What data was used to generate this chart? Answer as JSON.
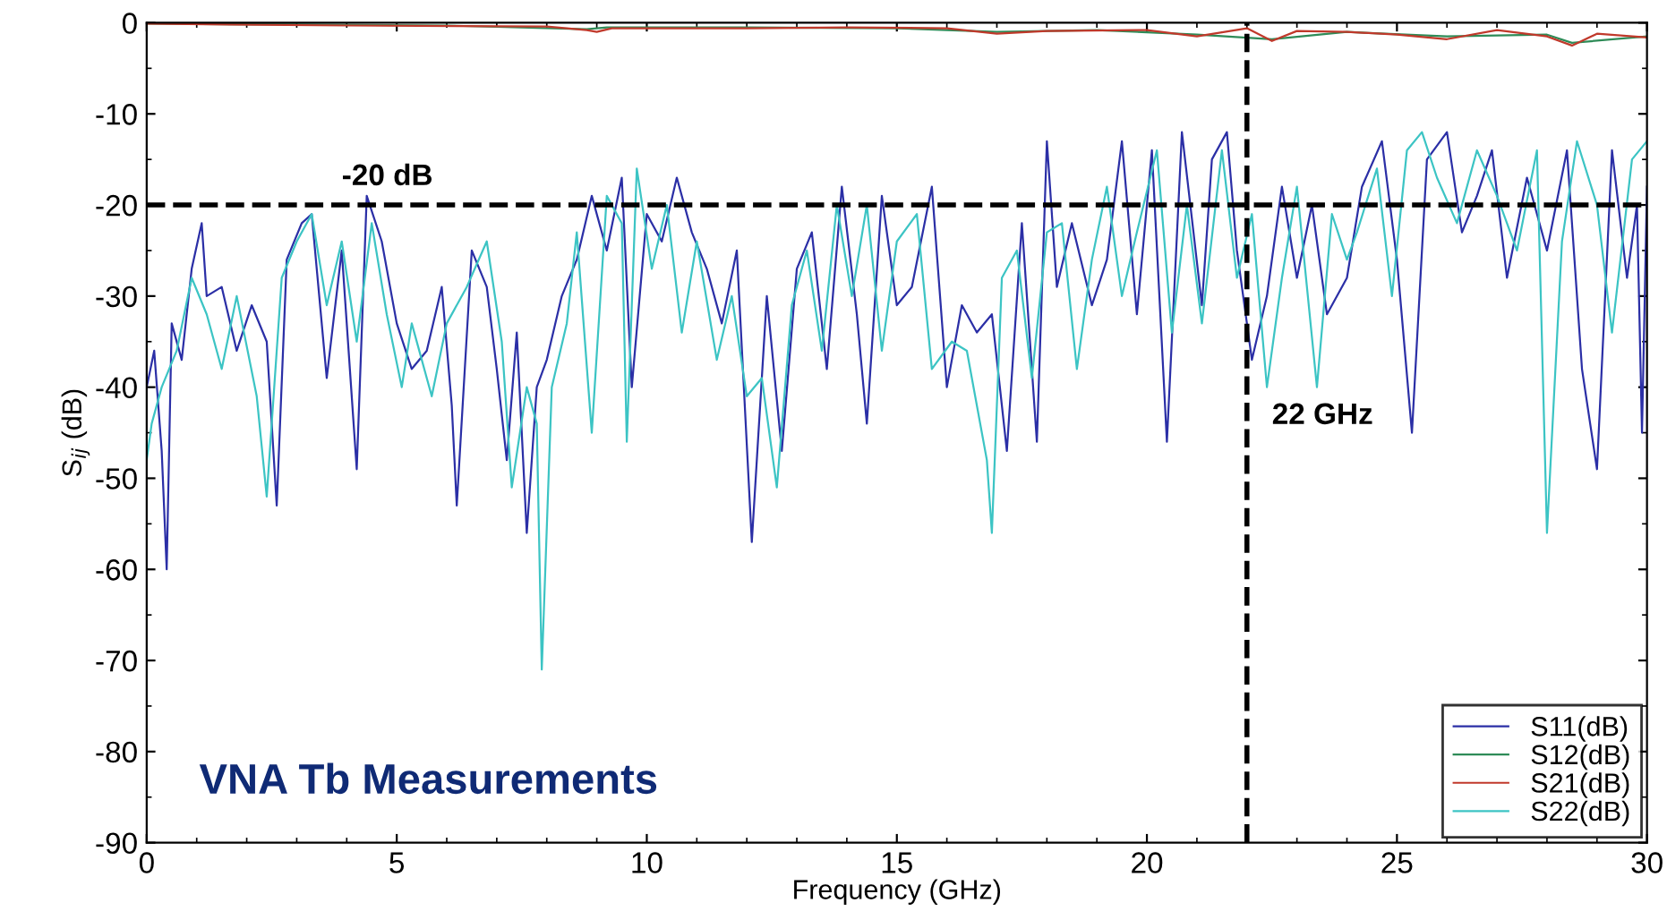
{
  "chart_data": {
    "type": "line",
    "xlabel": "Frequency (GHz)",
    "ylabel": "S$_{ij}$ (dB)",
    "xlim": [
      0,
      30
    ],
    "ylim": [
      -90,
      0
    ],
    "xticks": [
      0,
      5,
      10,
      15,
      20,
      25,
      30
    ],
    "yticks": [
      -90,
      -80,
      -70,
      -60,
      -50,
      -40,
      -30,
      -20,
      -10,
      0
    ],
    "grid": false,
    "legend": "bottom right",
    "marker": "none",
    "line_style": "solid",
    "annotations": [
      "VNA Tb Measurements"
    ],
    "ref_lines": [
      {
        "axis": "y",
        "value": -20,
        "label": "-20 dB",
        "color": "#000000",
        "line_style": "dashed"
      },
      {
        "axis": "x",
        "value": 22,
        "label": "22 GHz",
        "color": "#000000",
        "line_style": "dashed"
      }
    ],
    "series": [
      {
        "name": "S11(dB)",
        "color": "#2b2fa6",
        "x": [
          0,
          0.15,
          0.3,
          0.4,
          0.5,
          0.7,
          0.9,
          1.1,
          1.2,
          1.5,
          1.8,
          2.1,
          2.4,
          2.6,
          2.8,
          3.1,
          3.3,
          3.6,
          3.9,
          4.2,
          4.4,
          4.7,
          5.0,
          5.3,
          5.6,
          5.9,
          6.1,
          6.2,
          6.5,
          6.8,
          7.0,
          7.2,
          7.4,
          7.6,
          7.8,
          8.0,
          8.3,
          8.6,
          8.9,
          9.2,
          9.5,
          9.7,
          10.0,
          10.3,
          10.6,
          10.9,
          11.2,
          11.5,
          11.8,
          12.1,
          12.4,
          12.7,
          13.0,
          13.3,
          13.6,
          13.9,
          14.2,
          14.4,
          14.7,
          15.0,
          15.3,
          15.7,
          16.0,
          16.3,
          16.6,
          16.9,
          17.2,
          17.5,
          17.8,
          18.0,
          18.2,
          18.5,
          18.9,
          19.2,
          19.5,
          19.8,
          20.1,
          20.4,
          20.7,
          21.1,
          21.3,
          21.6,
          21.8,
          22.1,
          22.4,
          22.7,
          23.0,
          23.3,
          23.6,
          24.0,
          24.3,
          24.7,
          25.0,
          25.3,
          25.6,
          26.0,
          26.3,
          26.6,
          26.9,
          27.2,
          27.6,
          28.0,
          28.4,
          28.7,
          29.0,
          29.3,
          29.6,
          29.8,
          29.9,
          30
        ],
        "values": [
          -40,
          -36,
          -47,
          -60,
          -33,
          -37,
          -27,
          -22,
          -30,
          -29,
          -36,
          -31,
          -35,
          -53,
          -26,
          -22,
          -21,
          -39,
          -25,
          -49,
          -19,
          -24,
          -33,
          -38,
          -36,
          -29,
          -42,
          -53,
          -25,
          -29,
          -38,
          -48,
          -34,
          -56,
          -40,
          -37,
          -30,
          -26,
          -19,
          -25,
          -17,
          -40,
          -21,
          -24,
          -17,
          -23,
          -27,
          -33,
          -25,
          -57,
          -30,
          -47,
          -27,
          -23,
          -38,
          -18,
          -32,
          -44,
          -19,
          -31,
          -29,
          -18,
          -40,
          -31,
          -34,
          -32,
          -47,
          -22,
          -46,
          -13,
          -29,
          -22,
          -31,
          -26,
          -13,
          -32,
          -14,
          -46,
          -12,
          -31,
          -15,
          -12,
          -25,
          -37,
          -30,
          -18,
          -28,
          -20,
          -32,
          -28,
          -18,
          -13,
          -26,
          -45,
          -15,
          -12,
          -23,
          -19,
          -14,
          -28,
          -17,
          -25,
          -14,
          -38,
          -49,
          -14,
          -28,
          -20,
          -45,
          -18
        ]
      },
      {
        "name": "S12(dB)",
        "color": "#2e8b57",
        "x": [
          0,
          3,
          6,
          8.8,
          9.2,
          12,
          15,
          17,
          19,
          21,
          22.5,
          24,
          26,
          28,
          28.5,
          30
        ],
        "values": [
          -0.1,
          -0.2,
          -0.3,
          -0.7,
          -0.5,
          -0.5,
          -0.6,
          -1.0,
          -0.8,
          -1.3,
          -1.8,
          -1.0,
          -1.5,
          -1.3,
          -2.2,
          -1.5
        ]
      },
      {
        "name": "S21(dB)",
        "color": "#c0392b",
        "x": [
          0,
          4,
          8,
          8.8,
          9,
          9.3,
          12,
          14,
          16,
          17,
          18,
          20,
          21,
          22,
          22.5,
          23,
          24,
          25,
          26,
          27,
          28,
          28.5,
          29,
          30
        ],
        "values": [
          -0.1,
          -0.3,
          -0.4,
          -0.8,
          -1,
          -0.6,
          -0.6,
          -0.5,
          -0.6,
          -1.2,
          -0.9,
          -0.8,
          -1.5,
          -0.6,
          -2,
          -0.9,
          -1,
          -1.3,
          -1.8,
          -0.8,
          -1.5,
          -2.5,
          -1.2,
          -1.6
        ]
      },
      {
        "name": "S22(dB)",
        "color": "#3cc4c4",
        "x": [
          0,
          0.1,
          0.3,
          0.6,
          0.9,
          1.2,
          1.5,
          1.8,
          2.2,
          2.4,
          2.7,
          3.0,
          3.3,
          3.6,
          3.9,
          4.2,
          4.5,
          4.8,
          5.1,
          5.3,
          5.7,
          6.0,
          6.4,
          6.8,
          7.1,
          7.3,
          7.6,
          7.8,
          7.9,
          8.1,
          8.4,
          8.6,
          8.9,
          9.2,
          9.5,
          9.6,
          9.8,
          10.1,
          10.4,
          10.7,
          11.0,
          11.4,
          11.7,
          12.0,
          12.3,
          12.6,
          12.9,
          13.2,
          13.5,
          13.8,
          14.1,
          14.4,
          14.7,
          15.0,
          15.4,
          15.7,
          16.1,
          16.4,
          16.8,
          16.9,
          17.1,
          17.4,
          17.7,
          18.0,
          18.3,
          18.6,
          18.9,
          19.2,
          19.5,
          19.8,
          20.2,
          20.5,
          20.8,
          21.1,
          21.5,
          21.8,
          22.1,
          22.4,
          22.7,
          23.0,
          23.4,
          23.7,
          24.0,
          24.2,
          24.6,
          24.9,
          25.2,
          25.5,
          25.8,
          26.2,
          26.6,
          27.0,
          27.4,
          27.8,
          28.0,
          28.3,
          28.6,
          29.0,
          29.3,
          29.7,
          30
        ],
        "values": [
          -48,
          -44,
          -40,
          -36,
          -28,
          -32,
          -38,
          -30,
          -41,
          -52,
          -28,
          -24,
          -21,
          -31,
          -24,
          -35,
          -22,
          -32,
          -40,
          -33,
          -41,
          -33,
          -29,
          -24,
          -35,
          -51,
          -40,
          -44,
          -71,
          -40,
          -33,
          -23,
          -45,
          -19,
          -22,
          -46,
          -16,
          -27,
          -20,
          -34,
          -24,
          -37,
          -30,
          -41,
          -39,
          -51,
          -31,
          -25,
          -36,
          -20,
          -30,
          -20,
          -36,
          -24,
          -21,
          -38,
          -35,
          -36,
          -48,
          -56,
          -28,
          -25,
          -39,
          -23,
          -22,
          -38,
          -26,
          -18,
          -30,
          -23,
          -14,
          -34,
          -20,
          -33,
          -14,
          -28,
          -21,
          -40,
          -28,
          -18,
          -40,
          -21,
          -26,
          -23,
          -16,
          -30,
          -14,
          -12,
          -17,
          -22,
          -14,
          -19,
          -25,
          -14,
          -56,
          -24,
          -13,
          -20,
          -34,
          -15,
          -13
        ]
      }
    ]
  }
}
